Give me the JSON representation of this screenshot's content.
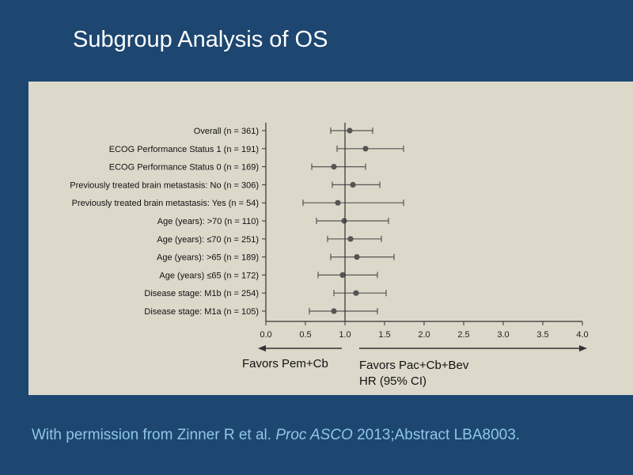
{
  "slide": {
    "title": "Subgroup Analysis of OS",
    "citation": {
      "pre": "With permission from Zinner R et al. ",
      "journal": "Proc ASCO",
      "post": " 2013;Abstract LBA8003."
    }
  },
  "colors": {
    "background": "#1d4670",
    "panel": "#dcd8ca",
    "marker": "#555555",
    "citation": "#8ec6e6"
  },
  "chart_data": {
    "type": "scatter",
    "subtype": "forest-plot",
    "title": "",
    "xlim": [
      0.0,
      4.0
    ],
    "x_ticks": [
      "0.0",
      "0.5",
      "1.0",
      "1.5",
      "2.0",
      "2.5",
      "3.0",
      "3.5",
      "4.0"
    ],
    "reference_line": 1.0,
    "rows": [
      {
        "label": "Overall (n = 361)",
        "hr": 1.06,
        "lo": 0.82,
        "hi": 1.35
      },
      {
        "label": "ECOG Performance Status 1 (n = 191)",
        "hr": 1.26,
        "lo": 0.9,
        "hi": 1.74
      },
      {
        "label": "ECOG Performance Status 0 (n = 169)",
        "hr": 0.86,
        "lo": 0.58,
        "hi": 1.26
      },
      {
        "label": "Previously treated brain metastasis: No (n = 306)",
        "hr": 1.1,
        "lo": 0.84,
        "hi": 1.44
      },
      {
        "label": "Previously treated brain metastasis: Yes (n = 54)",
        "hr": 0.91,
        "lo": 0.47,
        "hi": 1.74
      },
      {
        "label": "Age (years): >70 (n = 110)",
        "hr": 0.99,
        "lo": 0.64,
        "hi": 1.55
      },
      {
        "label": "Age (years): ≤70 (n = 251)",
        "hr": 1.07,
        "lo": 0.78,
        "hi": 1.46
      },
      {
        "label": "Age (years): >65 (n = 189)",
        "hr": 1.15,
        "lo": 0.82,
        "hi": 1.62
      },
      {
        "label": "Age (years) ≤65 (n = 172)",
        "hr": 0.97,
        "lo": 0.66,
        "hi": 1.41
      },
      {
        "label": "Disease stage: M1b (n = 254)",
        "hr": 1.14,
        "lo": 0.86,
        "hi": 1.52
      },
      {
        "label": "Disease stage: M1a (n = 105)",
        "hr": 0.86,
        "lo": 0.55,
        "hi": 1.41
      }
    ],
    "favors_left": "Favors Pem+Cb",
    "favors_right": "Favors Pac+Cb+Bev",
    "xlabel": "HR (95% CI)"
  }
}
